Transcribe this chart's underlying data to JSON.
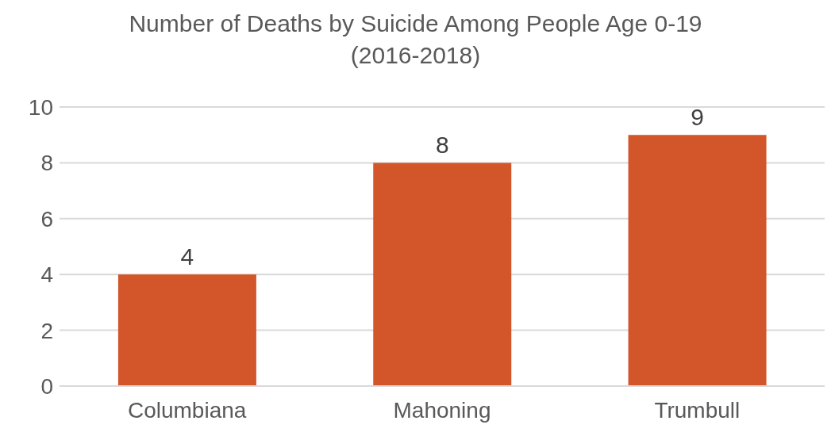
{
  "chart_data": {
    "type": "bar",
    "title": "Number of Deaths by Suicide Among People Age 0-19\n(2016-2018)",
    "categories": [
      "Columbiana",
      "Mahoning",
      "Trumbull"
    ],
    "values": [
      4,
      8,
      9
    ],
    "color": "#d2562a",
    "ylim": [
      0,
      10
    ],
    "yticks": [
      0,
      2,
      4,
      6,
      8,
      10
    ],
    "grid": "y",
    "data_labels": true
  }
}
